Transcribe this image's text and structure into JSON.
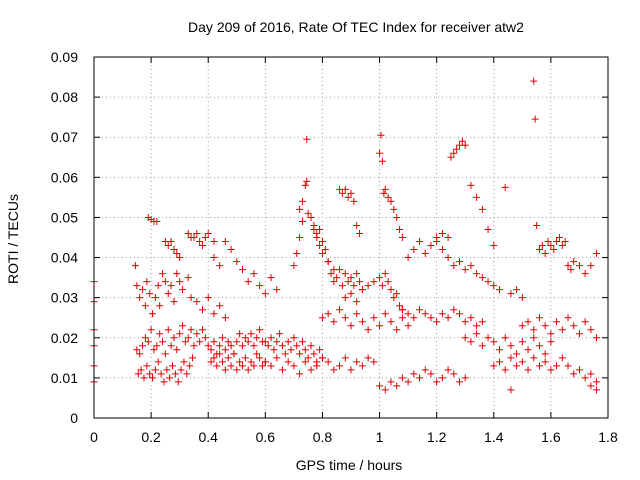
{
  "chart_data": {
    "type": "scatter",
    "title": "Day 209 of 2016, Rate Of TEC Index for receiver atw2",
    "xlabel": "GPS time / hours",
    "ylabel": "ROTI / TECUs",
    "xlim": [
      0,
      1.8
    ],
    "ylim": [
      0,
      0.09
    ],
    "x_ticks": [
      "0",
      "0.2",
      "0.4",
      "0.6",
      "0.8",
      "1",
      "1.2",
      "1.4",
      "1.6",
      "1.8"
    ],
    "y_ticks": [
      "0",
      "0.01",
      "0.02",
      "0.03",
      "0.04",
      "0.05",
      "0.06",
      "0.07",
      "0.08",
      "0.09"
    ],
    "grid": true,
    "marker": "+",
    "color": "#e00000",
    "series": [
      {
        "x": [
          0.0,
          0.0,
          0.0,
          0.0,
          0.0,
          0.0,
          0.145,
          0.15,
          0.16,
          0.17,
          0.18,
          0.185,
          0.195,
          0.205,
          0.215,
          0.225,
          0.23,
          0.24,
          0.25,
          0.26,
          0.27,
          0.28,
          0.29,
          0.3,
          0.31,
          0.33,
          0.34,
          0.36,
          0.38,
          0.4,
          0.42,
          0.44,
          0.46,
          0.15,
          0.16,
          0.17,
          0.18,
          0.19,
          0.2,
          0.21,
          0.22,
          0.23,
          0.24,
          0.25,
          0.26,
          0.27,
          0.28,
          0.29,
          0.3,
          0.31,
          0.32,
          0.33,
          0.34,
          0.35,
          0.36,
          0.37,
          0.38,
          0.39,
          0.155,
          0.165,
          0.175,
          0.185,
          0.195,
          0.205,
          0.215,
          0.225,
          0.235,
          0.245,
          0.255,
          0.265,
          0.275,
          0.285,
          0.295,
          0.305,
          0.315,
          0.325,
          0.335,
          0.345,
          0.19,
          0.2,
          0.21,
          0.22,
          0.25,
          0.26,
          0.27,
          0.28,
          0.29,
          0.3,
          0.33,
          0.34,
          0.35,
          0.36,
          0.37,
          0.38,
          0.39,
          0.4,
          0.42,
          0.41,
          0.42,
          0.43,
          0.44,
          0.45,
          0.46,
          0.47,
          0.48,
          0.49,
          0.5,
          0.51,
          0.52,
          0.53,
          0.54,
          0.55,
          0.56,
          0.57,
          0.58,
          0.59,
          0.6,
          0.4,
          0.41,
          0.42,
          0.43,
          0.44,
          0.45,
          0.46,
          0.47,
          0.48,
          0.49,
          0.5,
          0.51,
          0.52,
          0.53,
          0.54,
          0.55,
          0.56,
          0.57,
          0.58,
          0.59,
          0.42,
          0.44,
          0.46,
          0.48,
          0.5,
          0.52,
          0.54,
          0.56,
          0.58,
          0.6,
          0.62,
          0.64,
          0.6,
          0.61,
          0.62,
          0.63,
          0.64,
          0.65,
          0.66,
          0.67,
          0.68,
          0.69,
          0.7,
          0.71,
          0.72,
          0.73,
          0.74,
          0.75,
          0.76,
          0.77,
          0.78,
          0.79,
          0.8,
          0.6,
          0.62,
          0.64,
          0.66,
          0.68,
          0.7,
          0.72,
          0.74,
          0.76,
          0.78,
          0.8,
          0.82,
          0.84,
          0.86,
          0.88,
          0.9,
          0.92,
          0.94,
          0.96,
          0.98,
          0.7,
          0.71,
          0.72,
          0.73,
          0.74,
          0.745,
          0.76,
          0.77,
          0.78,
          0.79,
          0.8,
          0.81,
          0.82,
          0.83,
          0.84,
          0.85,
          0.86,
          0.87,
          0.88,
          0.89,
          0.9,
          0.91,
          0.92,
          0.93,
          0.94,
          0.72,
          0.73,
          0.745,
          0.75,
          0.77,
          0.78,
          0.79,
          0.8,
          0.82,
          0.84,
          0.86,
          0.87,
          0.88,
          0.89,
          0.9,
          0.91,
          0.92,
          0.93,
          0.8,
          0.82,
          0.84,
          0.86,
          0.88,
          0.9,
          0.92,
          0.94,
          0.96,
          0.98,
          1.0,
          1.02,
          1.04,
          1.06,
          1.08,
          1.1,
          0.88,
          0.9,
          0.92,
          0.94,
          0.96,
          0.98,
          1.0,
          1.01,
          1.02,
          1.03,
          1.04,
          1.05,
          1.06,
          1.07,
          1.08,
          1.0,
          1.005,
          1.01,
          1.015,
          1.02,
          1.03,
          1.04,
          1.05,
          1.06,
          1.07,
          1.08,
          1.0,
          1.02,
          1.04,
          1.06,
          1.08,
          1.1,
          1.12,
          1.14,
          1.16,
          1.18,
          1.2,
          1.22,
          1.24,
          1.26,
          1.28,
          1.3,
          1.08,
          1.1,
          1.12,
          1.14,
          1.16,
          1.18,
          1.2,
          1.22,
          1.24,
          1.26,
          1.28,
          1.3,
          1.32,
          1.34,
          1.36,
          1.2,
          1.22,
          1.24,
          1.25,
          1.26,
          1.27,
          1.28,
          1.29,
          1.3,
          1.32,
          1.34,
          1.36,
          1.38,
          1.4,
          1.1,
          1.12,
          1.14,
          1.16,
          1.18,
          1.2,
          1.22,
          1.24,
          1.26,
          1.28,
          1.3,
          1.32,
          1.34,
          1.36,
          1.38,
          1.4,
          1.42,
          1.44,
          1.46,
          1.48,
          1.5,
          1.3,
          1.32,
          1.34,
          1.36,
          1.38,
          1.4,
          1.42,
          1.44,
          1.46,
          1.48,
          1.5,
          1.52,
          1.54,
          1.56,
          1.58,
          1.6,
          1.4,
          1.42,
          1.44,
          1.46,
          1.48,
          1.5,
          1.52,
          1.54,
          1.56,
          1.58,
          1.6,
          1.62,
          1.64,
          1.66,
          1.68,
          1.7,
          1.72,
          1.74,
          1.76,
          1.5,
          1.52,
          1.54,
          1.56,
          1.58,
          1.6,
          1.62,
          1.64,
          1.66,
          1.68,
          1.7,
          1.72,
          1.74,
          1.76,
          1.56,
          1.57,
          1.58,
          1.59,
          1.6,
          1.61,
          1.62,
          1.63,
          1.64,
          1.65,
          1.66,
          1.67,
          1.68,
          1.7,
          1.72,
          1.74,
          1.76,
          1.54,
          1.545,
          1.55,
          1.46,
          1.74,
          1.76
        ],
        "y": [
          0.034,
          0.029,
          0.022,
          0.018,
          0.013,
          0.009,
          0.038,
          0.033,
          0.03,
          0.032,
          0.028,
          0.034,
          0.031,
          0.026,
          0.03,
          0.033,
          0.028,
          0.036,
          0.034,
          0.031,
          0.033,
          0.029,
          0.036,
          0.034,
          0.032,
          0.035,
          0.03,
          0.029,
          0.027,
          0.03,
          0.026,
          0.028,
          0.025,
          0.017,
          0.016,
          0.018,
          0.02,
          0.019,
          0.022,
          0.017,
          0.018,
          0.021,
          0.019,
          0.016,
          0.022,
          0.018,
          0.02,
          0.017,
          0.021,
          0.023,
          0.019,
          0.02,
          0.022,
          0.018,
          0.021,
          0.019,
          0.022,
          0.02,
          0.011,
          0.012,
          0.01,
          0.013,
          0.011,
          0.01,
          0.012,
          0.014,
          0.011,
          0.009,
          0.012,
          0.01,
          0.013,
          0.011,
          0.009,
          0.012,
          0.014,
          0.011,
          0.013,
          0.015,
          0.05,
          0.0495,
          0.049,
          0.049,
          0.044,
          0.043,
          0.044,
          0.042,
          0.041,
          0.04,
          0.046,
          0.045,
          0.045,
          0.046,
          0.044,
          0.043,
          0.045,
          0.046,
          0.044,
          0.014,
          0.015,
          0.013,
          0.016,
          0.014,
          0.012,
          0.015,
          0.013,
          0.016,
          0.012,
          0.014,
          0.013,
          0.015,
          0.012,
          0.014,
          0.013,
          0.016,
          0.015,
          0.013,
          0.014,
          0.018,
          0.017,
          0.019,
          0.016,
          0.018,
          0.02,
          0.017,
          0.019,
          0.018,
          0.016,
          0.019,
          0.021,
          0.018,
          0.02,
          0.019,
          0.021,
          0.018,
          0.02,
          0.022,
          0.019,
          0.04,
          0.038,
          0.044,
          0.042,
          0.039,
          0.037,
          0.034,
          0.036,
          0.033,
          0.031,
          0.035,
          0.032,
          0.019,
          0.018,
          0.02,
          0.017,
          0.019,
          0.021,
          0.018,
          0.016,
          0.019,
          0.017,
          0.02,
          0.018,
          0.016,
          0.019,
          0.017,
          0.015,
          0.018,
          0.016,
          0.014,
          0.017,
          0.015,
          0.014,
          0.013,
          0.015,
          0.012,
          0.014,
          0.013,
          0.011,
          0.014,
          0.012,
          0.013,
          0.015,
          0.014,
          0.012,
          0.013,
          0.015,
          0.012,
          0.014,
          0.013,
          0.015,
          0.014,
          0.038,
          0.041,
          0.045,
          0.049,
          0.058,
          0.059,
          0.05,
          0.048,
          0.046,
          0.047,
          0.044,
          0.042,
          0.039,
          0.036,
          0.034,
          0.035,
          0.037,
          0.033,
          0.036,
          0.034,
          0.035,
          0.033,
          0.036,
          0.034,
          0.032,
          0.052,
          0.054,
          0.0695,
          0.051,
          0.047,
          0.045,
          0.043,
          0.041,
          0.039,
          0.037,
          0.057,
          0.056,
          0.057,
          0.055,
          0.056,
          0.054,
          0.048,
          0.046,
          0.025,
          0.026,
          0.024,
          0.027,
          0.025,
          0.023,
          0.026,
          0.024,
          0.022,
          0.025,
          0.023,
          0.026,
          0.024,
          0.022,
          0.025,
          0.023,
          0.03,
          0.031,
          0.029,
          0.032,
          0.033,
          0.034,
          0.035,
          0.033,
          0.036,
          0.034,
          0.032,
          0.03,
          0.031,
          0.028,
          0.027,
          0.066,
          0.0705,
          0.064,
          0.056,
          0.057,
          0.055,
          0.054,
          0.052,
          0.05,
          0.047,
          0.045,
          0.008,
          0.007,
          0.009,
          0.008,
          0.01,
          0.009,
          0.011,
          0.01,
          0.012,
          0.011,
          0.009,
          0.01,
          0.012,
          0.011,
          0.009,
          0.01,
          0.027,
          0.026,
          0.025,
          0.027,
          0.026,
          0.025,
          0.024,
          0.026,
          0.025,
          0.027,
          0.026,
          0.024,
          0.025,
          0.023,
          0.024,
          0.044,
          0.046,
          0.045,
          0.065,
          0.066,
          0.067,
          0.068,
          0.069,
          0.068,
          0.058,
          0.055,
          0.052,
          0.047,
          0.043,
          0.04,
          0.042,
          0.044,
          0.041,
          0.043,
          0.045,
          0.042,
          0.04,
          0.038,
          0.039,
          0.037,
          0.038,
          0.036,
          0.035,
          0.034,
          0.033,
          0.032,
          0.0575,
          0.031,
          0.032,
          0.03,
          0.02,
          0.019,
          0.021,
          0.018,
          0.02,
          0.019,
          0.017,
          0.02,
          0.018,
          0.016,
          0.019,
          0.017,
          0.02,
          0.018,
          0.016,
          0.019,
          0.013,
          0.014,
          0.012,
          0.015,
          0.013,
          0.014,
          0.012,
          0.015,
          0.013,
          0.014,
          0.012,
          0.013,
          0.015,
          0.013,
          0.011,
          0.012,
          0.01,
          0.011,
          0.009,
          0.023,
          0.024,
          0.022,
          0.025,
          0.023,
          0.021,
          0.024,
          0.022,
          0.025,
          0.023,
          0.021,
          0.024,
          0.022,
          0.02,
          0.042,
          0.043,
          0.041,
          0.044,
          0.043,
          0.042,
          0.044,
          0.045,
          0.043,
          0.044,
          0.038,
          0.037,
          0.039,
          0.038,
          0.036,
          0.038,
          0.041,
          0.084,
          0.0745,
          0.048,
          0.007,
          0.008,
          0.007
        ]
      }
    ]
  }
}
